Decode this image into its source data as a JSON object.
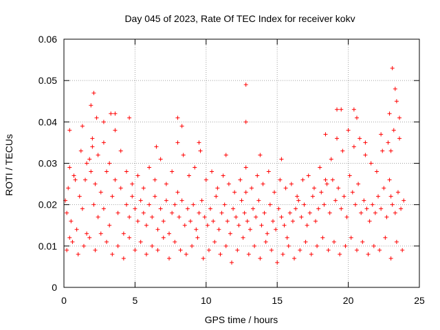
{
  "chart_data": {
    "type": "scatter",
    "title": "Day 045 of 2023, Rate Of TEC Index for receiver kokv",
    "xlabel": "GPS time / hours",
    "ylabel": "ROTI / TECUs",
    "xlim": [
      0,
      25
    ],
    "ylim": [
      0,
      0.06
    ],
    "xticks": [
      0,
      5,
      10,
      15,
      20,
      25
    ],
    "yticks": [
      0,
      0.01,
      0.02,
      0.03,
      0.04,
      0.05,
      0.06
    ],
    "xtick_labels": [
      "0",
      "5",
      "10",
      "15",
      "20",
      "25"
    ],
    "ytick_labels": [
      "0",
      "0.01",
      "0.02",
      "0.03",
      "0.04",
      "0.05",
      "0.06"
    ],
    "grid": true,
    "marker": "+",
    "color": "#ff0000",
    "series": [
      {
        "x": [
          0.1,
          0.2,
          0.3,
          0.4,
          0.5,
          0.7,
          0.9,
          1.1,
          1.3,
          1.5,
          1.6,
          1.8,
          1.9,
          2.0,
          2.1,
          2.2,
          2.4,
          2.6,
          2.8,
          3.0,
          3.2,
          3.4,
          3.6,
          3.8,
          4.0,
          4.2,
          4.4,
          4.6,
          4.8,
          5.0,
          5.2,
          5.4,
          5.6,
          5.8,
          6.0,
          6.2,
          6.4,
          6.6,
          6.8,
          7.0,
          7.2,
          7.4,
          7.6,
          7.8,
          8.0,
          8.1,
          8.3,
          8.5,
          8.7,
          8.9,
          9.1,
          9.3,
          9.5,
          9.7,
          9.9,
          10.1,
          10.3,
          10.5,
          10.7,
          10.9,
          11.1,
          11.3,
          11.5,
          11.7,
          11.9,
          12.1,
          12.3,
          12.5,
          12.7,
          12.8,
          12.9,
          13.1,
          13.3,
          13.5,
          13.7,
          13.9,
          14.1,
          14.3,
          14.5,
          14.7,
          14.9,
          15.1,
          15.3,
          15.5,
          15.7,
          15.9,
          16.1,
          16.3,
          16.5,
          16.7,
          16.9,
          17.1,
          17.3,
          17.5,
          17.7,
          17.9,
          18.1,
          18.3,
          18.5,
          18.7,
          18.9,
          19.1,
          19.3,
          19.5,
          19.7,
          19.9,
          20.1,
          20.3,
          20.5,
          20.7,
          20.9,
          21.1,
          21.3,
          21.5,
          21.7,
          21.9,
          22.1,
          22.3,
          22.5,
          22.7,
          22.9,
          23.0,
          23.1,
          23.3,
          23.5,
          23.7,
          23.9,
          0.2,
          0.6,
          1.0,
          1.4,
          1.8,
          2.2,
          2.6,
          3.0,
          3.4,
          3.8,
          4.2,
          4.6,
          5.0,
          5.4,
          5.8,
          6.2,
          6.6,
          7.0,
          7.4,
          7.8,
          8.2,
          8.6,
          9.0,
          9.4,
          9.8,
          10.2,
          10.6,
          11.0,
          11.4,
          11.8,
          12.2,
          12.6,
          13.0,
          13.4,
          13.8,
          14.2,
          14.6,
          15.0,
          15.4,
          15.8,
          16.2,
          16.6,
          17.0,
          17.4,
          17.8,
          18.2,
          18.6,
          19.0,
          19.4,
          19.8,
          20.2,
          20.6,
          21.0,
          21.4,
          21.8,
          22.2,
          22.6,
          23.0,
          23.4,
          23.8,
          0.4,
          0.8,
          1.2,
          1.6,
          2.0,
          2.4,
          2.8,
          3.2,
          3.6,
          4.0,
          4.4,
          4.8,
          5.2,
          5.6,
          6.0,
          6.4,
          6.8,
          7.2,
          7.6,
          8.0,
          8.4,
          8.8,
          9.2,
          9.6,
          10.0,
          10.4,
          10.8,
          11.2,
          11.6,
          12.0,
          12.4,
          12.8,
          13.2,
          13.6,
          14.0,
          14.4,
          14.8,
          15.2,
          15.6,
          16.0,
          16.4,
          16.8,
          17.2,
          17.6,
          18.0,
          18.4,
          18.8,
          19.2,
          19.6,
          20.0,
          20.4,
          20.8,
          21.2,
          21.6,
          22.0,
          22.4,
          22.8,
          23.2,
          23.6,
          2.1,
          3.6,
          8.0,
          12.8,
          12.8,
          19.2,
          20.4,
          23.0,
          23.1,
          23.3,
          23.4,
          0.4,
          1.3,
          1.9,
          2.3,
          2.8,
          3.3,
          4.6,
          6.5,
          8.3,
          9.5,
          11.4,
          13.8,
          15.3,
          18.4,
          19.5,
          20.6,
          21.2,
          22.3,
          22.9,
          23.6
        ],
        "y": [
          0.021,
          0.018,
          0.024,
          0.012,
          0.016,
          0.027,
          0.014,
          0.022,
          0.019,
          0.026,
          0.013,
          0.031,
          0.028,
          0.034,
          0.02,
          0.025,
          0.017,
          0.023,
          0.019,
          0.028,
          0.015,
          0.022,
          0.026,
          0.018,
          0.024,
          0.013,
          0.02,
          0.017,
          0.022,
          0.019,
          0.016,
          0.021,
          0.018,
          0.015,
          0.02,
          0.017,
          0.022,
          0.014,
          0.019,
          0.016,
          0.021,
          0.013,
          0.018,
          0.02,
          0.023,
          0.017,
          0.021,
          0.015,
          0.019,
          0.016,
          0.02,
          0.014,
          0.018,
          0.021,
          0.017,
          0.015,
          0.019,
          0.016,
          0.022,
          0.014,
          0.018,
          0.02,
          0.016,
          0.013,
          0.019,
          0.017,
          0.015,
          0.021,
          0.018,
          0.023,
          0.016,
          0.014,
          0.019,
          0.017,
          0.021,
          0.015,
          0.018,
          0.013,
          0.02,
          0.016,
          0.014,
          0.019,
          0.017,
          0.015,
          0.012,
          0.018,
          0.016,
          0.019,
          0.021,
          0.017,
          0.02,
          0.015,
          0.018,
          0.022,
          0.016,
          0.019,
          0.023,
          0.02,
          0.025,
          0.018,
          0.026,
          0.021,
          0.024,
          0.019,
          0.022,
          0.017,
          0.027,
          0.023,
          0.02,
          0.025,
          0.018,
          0.021,
          0.019,
          0.016,
          0.02,
          0.018,
          0.022,
          0.019,
          0.024,
          0.017,
          0.026,
          0.022,
          0.02,
          0.018,
          0.023,
          0.019,
          0.021,
          0.009,
          0.011,
          0.008,
          0.01,
          0.012,
          0.009,
          0.013,
          0.011,
          0.008,
          0.01,
          0.007,
          0.012,
          0.009,
          0.011,
          0.008,
          0.01,
          0.009,
          0.012,
          0.007,
          0.011,
          0.009,
          0.008,
          0.01,
          0.012,
          0.007,
          0.009,
          0.011,
          0.008,
          0.01,
          0.006,
          0.009,
          0.012,
          0.008,
          0.01,
          0.007,
          0.011,
          0.009,
          0.006,
          0.008,
          0.01,
          0.007,
          0.009,
          0.011,
          0.008,
          0.01,
          0.012,
          0.009,
          0.011,
          0.008,
          0.01,
          0.012,
          0.009,
          0.011,
          0.008,
          0.01,
          0.009,
          0.012,
          0.007,
          0.011,
          0.009,
          0.029,
          0.026,
          0.033,
          0.03,
          0.036,
          0.032,
          0.035,
          0.03,
          0.038,
          0.033,
          0.028,
          0.025,
          0.027,
          0.024,
          0.029,
          0.026,
          0.031,
          0.025,
          0.028,
          0.035,
          0.032,
          0.027,
          0.029,
          0.033,
          0.026,
          0.028,
          0.024,
          0.027,
          0.025,
          0.023,
          0.026,
          0.029,
          0.024,
          0.027,
          0.025,
          0.028,
          0.023,
          0.026,
          0.024,
          0.025,
          0.022,
          0.026,
          0.027,
          0.024,
          0.029,
          0.026,
          0.031,
          0.036,
          0.033,
          0.038,
          0.034,
          0.036,
          0.032,
          0.03,
          0.028,
          0.033,
          0.035,
          0.038,
          0.036,
          0.047,
          0.042,
          0.041,
          0.049,
          0.04,
          0.043,
          0.043,
          0.033,
          0.053,
          0.048,
          0.045,
          0.038,
          0.039,
          0.044,
          0.041,
          0.04,
          0.042,
          0.041,
          0.034,
          0.039,
          0.035,
          0.032,
          0.032,
          0.031,
          0.037,
          0.043,
          0.041,
          0.035,
          0.037,
          0.042,
          0.041
        ]
      }
    ]
  }
}
